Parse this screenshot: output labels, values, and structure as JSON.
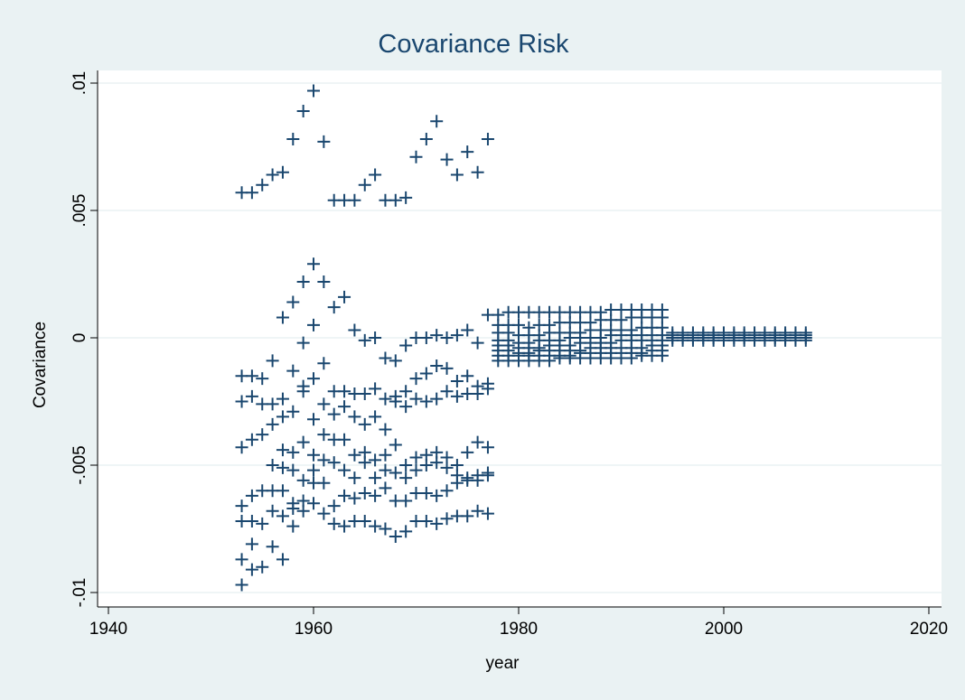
{
  "chart_data": {
    "type": "scatter",
    "title": "Covariance Risk",
    "x_label": "year",
    "y_label": "Covariance",
    "color": "#1a476f",
    "grid": true,
    "xlim": [
      1940,
      2020
    ],
    "xticks": [
      1940,
      1960,
      1980,
      2000,
      2020
    ],
    "ylim": [
      -0.01,
      0.01
    ],
    "yticks": [
      {
        "value": -0.01,
        "label": "-.01"
      },
      {
        "value": -0.005,
        "label": "-.005"
      },
      0,
      {
        "value": 0.005,
        "label": ".005"
      },
      {
        "value": 0.01,
        "label": ".01"
      }
    ],
    "series": [
      {
        "x": [
          1953,
          1954,
          1955,
          1956,
          1957,
          1958,
          1959,
          1960,
          1961,
          1962,
          1963,
          1964,
          1965,
          1966,
          1967,
          1968,
          1969,
          1970,
          1971,
          1972,
          1973,
          1974,
          1975,
          1976,
          1977
        ],
        "values": [
          0.0057,
          0.0057,
          0.006,
          0.0064,
          0.0065,
          0.0078,
          0.0089,
          0.0097,
          0.0077,
          0.0054,
          0.0054,
          0.0054,
          0.006,
          0.0064,
          0.0054,
          0.0054,
          0.0055,
          0.0071,
          0.0078,
          0.0085,
          0.007,
          0.0064,
          0.0073,
          0.0065,
          0.0078
        ]
      },
      {
        "x": [
          1957,
          1958,
          1959,
          1960,
          1961,
          1962,
          1963,
          1964,
          1965,
          1966,
          1967,
          1968,
          1969,
          1970,
          1971,
          1972,
          1973,
          1974,
          1975,
          1976,
          1977,
          1959,
          1960
        ],
        "values": [
          0.0008,
          0.0014,
          0.0022,
          0.0029,
          0.0022,
          0.0012,
          0.0016,
          0.0003,
          -0.0001,
          0,
          -0.0008,
          -0.0009,
          -0.0003,
          0,
          0,
          0.0001,
          0,
          0.0001,
          0.0003,
          -0.0002,
          0.0009,
          -0.0002,
          0.0005
        ]
      },
      {
        "x": [
          1953,
          1954,
          1955,
          1956,
          1957,
          1958,
          1959,
          1960,
          1961,
          1962,
          1963,
          1964,
          1965,
          1966,
          1967,
          1968,
          1969,
          1970,
          1971,
          1972,
          1973,
          1974,
          1975,
          1976,
          1977
        ],
        "values": [
          -0.0015,
          -0.0015,
          -0.0016,
          -0.0009,
          -0.0024,
          -0.0013,
          -0.0019,
          -0.0016,
          -0.001,
          -0.0021,
          -0.0021,
          -0.0022,
          -0.0022,
          -0.002,
          -0.0024,
          -0.0023,
          -0.0021,
          -0.0016,
          -0.0014,
          -0.0011,
          -0.0012,
          -0.0017,
          -0.0015,
          -0.0019,
          -0.0018
        ]
      },
      {
        "x": [
          1953,
          1954,
          1955,
          1956,
          1957,
          1958,
          1959,
          1960,
          1961,
          1962,
          1963,
          1964,
          1965,
          1966,
          1967,
          1968,
          1969,
          1970,
          1971,
          1972,
          1973,
          1974,
          1975,
          1976,
          1977
        ],
        "values": [
          -0.0025,
          -0.0023,
          -0.0026,
          -0.0026,
          -0.0031,
          -0.0029,
          -0.0021,
          -0.0032,
          -0.0026,
          -0.003,
          -0.0027,
          -0.0031,
          -0.0034,
          -0.0031,
          -0.0036,
          -0.0025,
          -0.0027,
          -0.0024,
          -0.0025,
          -0.0024,
          -0.0021,
          -0.0023,
          -0.0022,
          -0.0022,
          -0.002
        ]
      },
      {
        "x": [
          1953,
          1954,
          1955,
          1956,
          1957,
          1958,
          1959,
          1960,
          1961,
          1962,
          1963,
          1964,
          1965,
          1966,
          1967,
          1968,
          1969,
          1970,
          1971,
          1972,
          1973,
          1974,
          1975,
          1976,
          1977
        ],
        "values": [
          -0.0043,
          -0.004,
          -0.0038,
          -0.0034,
          -0.0044,
          -0.0045,
          -0.0041,
          -0.0046,
          -0.0038,
          -0.004,
          -0.004,
          -0.0046,
          -0.0045,
          -0.0048,
          -0.0046,
          -0.0042,
          -0.005,
          -0.0047,
          -0.0046,
          -0.0045,
          -0.0047,
          -0.005,
          -0.0045,
          -0.0041,
          -0.0043
        ]
      },
      {
        "x": [
          1956,
          1957,
          1958,
          1959,
          1960,
          1961,
          1962,
          1963,
          1964,
          1965,
          1966,
          1967,
          1968,
          1969,
          1970,
          1971,
          1972,
          1973,
          1974,
          1975,
          1976,
          1977
        ],
        "values": [
          -0.005,
          -0.0051,
          -0.0052,
          -0.0056,
          -0.0052,
          -0.0048,
          -0.0049,
          -0.0052,
          -0.0055,
          -0.0049,
          -0.0055,
          -0.0052,
          -0.0053,
          -0.0055,
          -0.0052,
          -0.005,
          -0.0049,
          -0.0051,
          -0.0054,
          -0.0055,
          -0.0054,
          -0.0053
        ]
      },
      {
        "x": [
          1953,
          1954,
          1955,
          1956,
          1957,
          1958,
          1959,
          1960,
          1961,
          1962,
          1963,
          1964,
          1965,
          1966,
          1967,
          1968,
          1969,
          1970,
          1971,
          1972,
          1973,
          1974,
          1975,
          1976,
          1977
        ],
        "values": [
          -0.0066,
          -0.0062,
          -0.006,
          -0.006,
          -0.006,
          -0.0065,
          -0.0064,
          -0.0057,
          -0.0057,
          -0.0066,
          -0.0062,
          -0.0063,
          -0.0061,
          -0.0062,
          -0.0059,
          -0.0064,
          -0.0064,
          -0.0061,
          -0.0061,
          -0.0062,
          -0.006,
          -0.0057,
          -0.0056,
          -0.0056,
          -0.0054
        ]
      },
      {
        "x": [
          1953,
          1954,
          1955,
          1956,
          1957,
          1958,
          1959,
          1960,
          1961,
          1962,
          1963,
          1964,
          1965,
          1966,
          1967,
          1968,
          1969,
          1970,
          1971,
          1972,
          1973,
          1974,
          1975,
          1976,
          1977
        ],
        "values": [
          -0.0072,
          -0.0072,
          -0.0073,
          -0.0068,
          -0.007,
          -0.0074,
          -0.0068,
          -0.0065,
          -0.0069,
          -0.0073,
          -0.0074,
          -0.0072,
          -0.0072,
          -0.0074,
          -0.0075,
          -0.0078,
          -0.0076,
          -0.0072,
          -0.0072,
          -0.0073,
          -0.0071,
          -0.007,
          -0.007,
          -0.0068,
          -0.0069
        ]
      },
      {
        "x": [
          1953,
          1953,
          1954,
          1954,
          1955,
          1956,
          1957,
          1958
        ],
        "values": [
          -0.0087,
          -0.0097,
          -0.0081,
          -0.0091,
          -0.009,
          -0.0082,
          -0.0087,
          -0.0067
        ]
      },
      {
        "x": [
          1978,
          1979,
          1980,
          1981,
          1982,
          1983,
          1984,
          1985,
          1986,
          1987,
          1988,
          1989,
          1990,
          1991,
          1992,
          1993,
          1994
        ],
        "values": [
          0.0009,
          0.001,
          0.001,
          0.001,
          0.001,
          0.001,
          0.001,
          0.001,
          0.001,
          0.001,
          0.001,
          0.0011,
          0.0011,
          0.0011,
          0.0011,
          0.0011,
          0.0011
        ]
      },
      {
        "x": [
          1978,
          1979,
          1980,
          1981,
          1982,
          1983,
          1984,
          1985,
          1986,
          1987,
          1988,
          1989,
          1990,
          1991,
          1992,
          1993,
          1994
        ],
        "values": [
          0.0005,
          0.0005,
          0.0005,
          0.0004,
          0.0005,
          0.0005,
          0.0006,
          0.0006,
          0.0006,
          0.0006,
          0.0007,
          0.0007,
          0.0007,
          0.0008,
          0.0008,
          0.0008,
          0.0008
        ]
      },
      {
        "x": [
          1978,
          1979,
          1980,
          1981,
          1982,
          1983,
          1984,
          1985,
          1986,
          1987,
          1988,
          1989,
          1990,
          1991,
          1992,
          1993,
          1994
        ],
        "values": [
          0.0002,
          0.0002,
          0.0001,
          0.0001,
          0.0001,
          0.0002,
          0.0002,
          0.0002,
          0.0002,
          0.0003,
          0.0003,
          0.0003,
          0.0003,
          0.0003,
          0.0004,
          0.0004,
          0.0004
        ]
      },
      {
        "x": [
          1978,
          1979,
          1980,
          1981,
          1982,
          1983,
          1984,
          1985,
          1986,
          1987,
          1988,
          1989,
          1990,
          1991,
          1992,
          1993,
          1994
        ],
        "values": [
          -0.0001,
          -0.0001,
          -0.0002,
          -0.0002,
          -0.0001,
          -0.0001,
          -0.0001,
          0,
          0,
          0,
          0,
          0.0001,
          0.0001,
          0.0001,
          0.0001,
          0.0001,
          0.0001
        ]
      },
      {
        "x": [
          1978,
          1979,
          1980,
          1981,
          1982,
          1983,
          1984,
          1985,
          1986,
          1987,
          1988,
          1989,
          1990,
          1991,
          1992,
          1993,
          1994
        ],
        "values": [
          -0.0003,
          -0.0003,
          -0.0004,
          -0.0004,
          -0.0004,
          -0.0003,
          -0.0003,
          -0.0003,
          -0.0002,
          -0.0002,
          -0.0002,
          -0.0002,
          -0.0001,
          -0.0001,
          -0.0001,
          -0.0001,
          -0.0001
        ]
      },
      {
        "x": [
          1978,
          1979,
          1980,
          1981,
          1982,
          1983,
          1984,
          1985,
          1986,
          1987,
          1988,
          1989,
          1990,
          1991,
          1992,
          1993,
          1994
        ],
        "values": [
          -0.0005,
          -0.0005,
          -0.0006,
          -0.0006,
          -0.0005,
          -0.0005,
          -0.0005,
          -0.0005,
          -0.0005,
          -0.0004,
          -0.0004,
          -0.0004,
          -0.0004,
          -0.0004,
          -0.0004,
          -0.0003,
          -0.0003
        ]
      },
      {
        "x": [
          1978,
          1979,
          1980,
          1981,
          1982,
          1983,
          1984,
          1985,
          1986,
          1987,
          1988,
          1989,
          1990,
          1991,
          1992,
          1993,
          1994
        ],
        "values": [
          -0.0007,
          -0.0007,
          -0.0007,
          -0.0007,
          -0.0007,
          -0.0007,
          -0.0007,
          -0.0007,
          -0.0006,
          -0.0006,
          -0.0006,
          -0.0006,
          -0.0006,
          -0.0006,
          -0.0006,
          -0.0005,
          -0.0005
        ]
      },
      {
        "x": [
          1978,
          1979,
          1980,
          1981,
          1982,
          1983,
          1984,
          1985,
          1986,
          1987,
          1988,
          1989,
          1990,
          1991,
          1992,
          1993,
          1994
        ],
        "values": [
          -0.0009,
          -0.0009,
          -0.0009,
          -0.0009,
          -0.0009,
          -0.0009,
          -0.0008,
          -0.0008,
          -0.0008,
          -0.0008,
          -0.0008,
          -0.0008,
          -0.0008,
          -0.0008,
          -0.0007,
          -0.0007,
          -0.0007
        ]
      },
      {
        "x": [
          1995,
          1996,
          1997,
          1998,
          1999,
          2000,
          2001,
          2002,
          2003,
          2004,
          2005,
          2006,
          2007,
          2008
        ],
        "values": [
          0.0002,
          0.0002,
          0.0002,
          0.0002,
          0.0002,
          0.0002,
          0.0002,
          0.0002,
          0.0002,
          0.0002,
          0.0002,
          0.0002,
          0.0002,
          0.0002
        ]
      },
      {
        "x": [
          1995,
          1996,
          1997,
          1998,
          1999,
          2000,
          2001,
          2002,
          2003,
          2004,
          2005,
          2006,
          2007,
          2008
        ],
        "values": [
          0.0001,
          0.0001,
          0.0001,
          0.0001,
          0.0001,
          0.0001,
          0.0001,
          0.0001,
          0.0001,
          0.0001,
          0.0001,
          0.0001,
          0.0001,
          0.0001
        ]
      },
      {
        "x": [
          1995,
          1996,
          1997,
          1998,
          1999,
          2000,
          2001,
          2002,
          2003,
          2004,
          2005,
          2006,
          2007,
          2008
        ],
        "values": [
          0,
          0,
          0,
          0,
          0,
          0,
          0,
          0,
          0,
          0,
          0,
          0,
          0,
          0
        ]
      },
      {
        "x": [
          1995,
          1996,
          1997,
          1998,
          1999,
          2000,
          2001,
          2002,
          2003,
          2004,
          2005,
          2006,
          2007,
          2008
        ],
        "values": [
          -0.0001,
          -0.0001,
          -0.0001,
          -0.0001,
          -0.0001,
          -0.0001,
          -0.0001,
          -0.0001,
          -0.0001,
          -0.0001,
          -0.0001,
          -0.0001,
          -0.0001,
          -0.0001
        ]
      }
    ]
  }
}
